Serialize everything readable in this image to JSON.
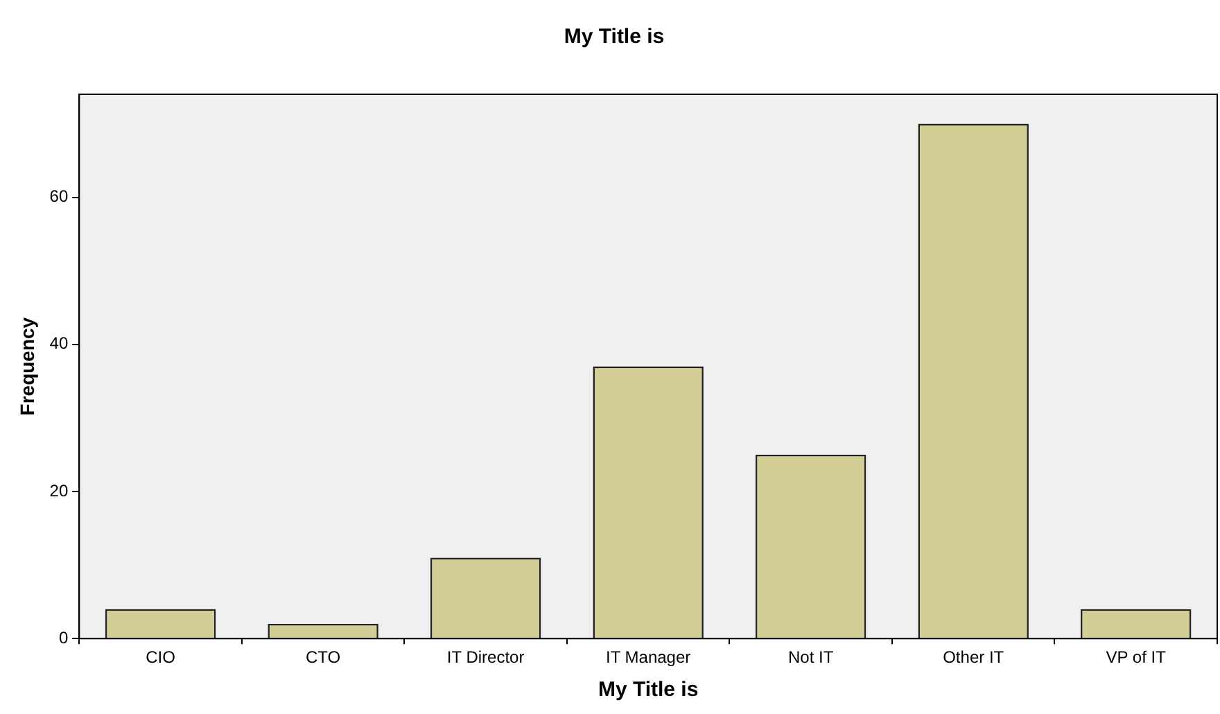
{
  "chart_data": {
    "type": "bar",
    "title": "My Title is",
    "xlabel": "My Title is",
    "ylabel": "Frequency",
    "categories": [
      "CIO",
      "CTO",
      "IT Director",
      "IT Manager",
      "Not IT",
      "Other IT",
      "VP of IT"
    ],
    "values": [
      4,
      2,
      11,
      37,
      25,
      70,
      4
    ],
    "color": "#d3cd96",
    "ylim": [
      0,
      74
    ],
    "yticks": [
      0,
      20,
      40,
      60
    ],
    "grid": false,
    "legend": false
  }
}
